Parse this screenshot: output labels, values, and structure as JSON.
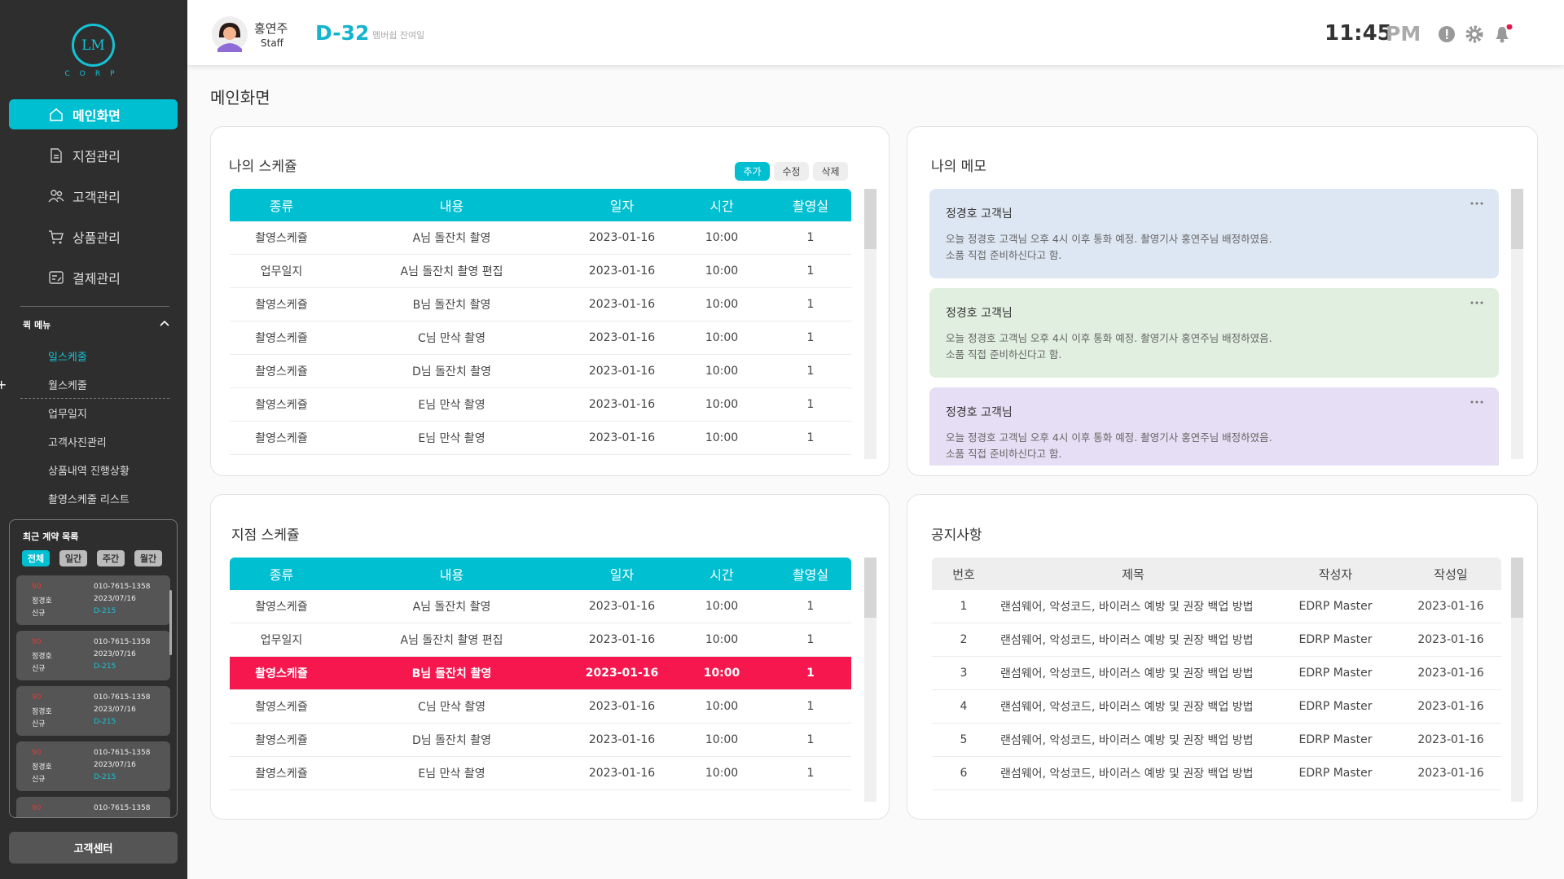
{
  "sidebar": {
    "logo": "LM",
    "logo_sub": "CORP",
    "nav": [
      "메인화면",
      "지점관리",
      "고객관리",
      "상품관리",
      "결제관리"
    ],
    "quick_menu": {
      "title": "퀵 메뉴",
      "items": [
        "일스케줄",
        "월스케줄",
        "업무일지",
        "고객사진관리",
        "상품내역 진행상황",
        "촬영스케줄 리스트"
      ]
    },
    "recent": {
      "title": "최근 계약 목록",
      "filters": [
        "전체",
        "일간",
        "주간",
        "월간"
      ],
      "cards": [
        {
          "score": "90",
          "name": "정경호",
          "status": "신규",
          "phone": "010-7615-1358",
          "date": "2023/07/16",
          "dday": "D-215"
        },
        {
          "score": "90",
          "name": "정경호",
          "status": "신규",
          "phone": "010-7615-1358",
          "date": "2023/07/16",
          "dday": "D-215"
        },
        {
          "score": "90",
          "name": "정경호",
          "status": "신규",
          "phone": "010-7615-1358",
          "date": "2023/07/16",
          "dday": "D-215"
        },
        {
          "score": "90",
          "name": "정경호",
          "status": "신규",
          "phone": "010-7615-1358",
          "date": "2023/07/16",
          "dday": "D-215"
        },
        {
          "score": "90",
          "phone": "010-7615-1358"
        }
      ]
    },
    "support": "고객센터"
  },
  "header": {
    "name": "홍연주",
    "role": "Staff",
    "dday": "D-32",
    "dday_label": "멤버쉽 잔여일",
    "time": "11:45",
    "ampm": "PM"
  },
  "page_title": "메인화면",
  "my_schedule": {
    "title": "나의 스케쥴",
    "actions": [
      "추가",
      "수정",
      "삭제"
    ],
    "columns": [
      "종류",
      "내용",
      "일자",
      "시간",
      "촬영실"
    ],
    "rows": [
      [
        "촬영스케쥴",
        "A님 돌잔치 촬영",
        "2023-01-16",
        "10:00",
        1
      ],
      [
        "업무일지",
        "A님 돌잔치 촬영 편집",
        "2023-01-16",
        "10:00",
        1
      ],
      [
        "촬영스케쥴",
        "B님 돌잔치 촬영",
        "2023-01-16",
        "10:00",
        1
      ],
      [
        "촬영스케쥴",
        "C님 만삭 촬영",
        "2023-01-16",
        "10:00",
        1
      ],
      [
        "촬영스케쥴",
        "D님 돌잔치 촬영",
        "2023-01-16",
        "10:00",
        1
      ],
      [
        "촬영스케쥴",
        "E님 만삭 촬영",
        "2023-01-16",
        "10:00",
        1
      ],
      [
        "촬영스케쥴",
        "E님 만삭 촬영",
        "2023-01-16",
        "10:00",
        1
      ]
    ]
  },
  "memo": {
    "title": "나의 메모",
    "items": [
      {
        "title": "정경호 고객님",
        "lines": [
          "오늘 정경호 고객님 오후 4시 이후 통화 예정. 촬영기사 홍연주님 배정하였음.",
          "소품 직접 준비하신다고 함."
        ]
      },
      {
        "title": "정경호 고객님",
        "lines": [
          "오늘 정경호 고객님 오후 4시 이후 통화 예정. 촬영기사 홍연주님 배정하였음.",
          "소품 직접 준비하신다고 함."
        ]
      },
      {
        "title": "정경호 고객님",
        "lines": [
          "오늘 정경호 고객님 오후 4시 이후 통화 예정. 촬영기사 홍연주님 배정하였음.",
          "소품 직접 준비하신다고 함."
        ]
      }
    ]
  },
  "branch_schedule": {
    "title": "지점 스케쥴",
    "columns": [
      "종류",
      "내용",
      "일자",
      "시간",
      "촬영실"
    ],
    "selected_row": 2,
    "rows": [
      [
        "촬영스케쥴",
        "A님 돌잔치 촬영",
        "2023-01-16",
        "10:00",
        1
      ],
      [
        "업무일지",
        "A님 돌잔치 촬영 편집",
        "2023-01-16",
        "10:00",
        1
      ],
      [
        "촬영스케쥴",
        "B님 돌잔치 촬영",
        "2023-01-16",
        "10:00",
        1
      ],
      [
        "촬영스케쥴",
        "C님 만삭 촬영",
        "2023-01-16",
        "10:00",
        1
      ],
      [
        "촬영스케쥴",
        "D님 돌잔치 촬영",
        "2023-01-16",
        "10:00",
        1
      ],
      [
        "촬영스케쥴",
        "E님 만삭 촬영",
        "2023-01-16",
        "10:00",
        1
      ]
    ]
  },
  "notices": {
    "title": "공지사항",
    "columns": [
      "번호",
      "제목",
      "작성자",
      "작성일"
    ],
    "rows": [
      [
        1,
        "랜섬웨어, 악성코드, 바이러스 예방 및 권장 백업 방법",
        "EDRP Master",
        "2023-01-16"
      ],
      [
        2,
        "랜섬웨어, 악성코드, 바이러스 예방 및 권장 백업 방법",
        "EDRP Master",
        "2023-01-16"
      ],
      [
        3,
        "랜섬웨어, 악성코드, 바이러스 예방 및 권장 백업 방법",
        "EDRP Master",
        "2023-01-16"
      ],
      [
        4,
        "랜섬웨어, 악성코드, 바이러스 예방 및 권장 백업 방법",
        "EDRP Master",
        "2023-01-16"
      ],
      [
        5,
        "랜섬웨어, 악성코드, 바이러스 예방 및 권장 백업 방법",
        "EDRP Master",
        "2023-01-16"
      ],
      [
        6,
        "랜섬웨어, 악성코드, 바이러스 예방 및 권장 백업 방법",
        "EDRP Master",
        "2023-01-16"
      ]
    ]
  }
}
